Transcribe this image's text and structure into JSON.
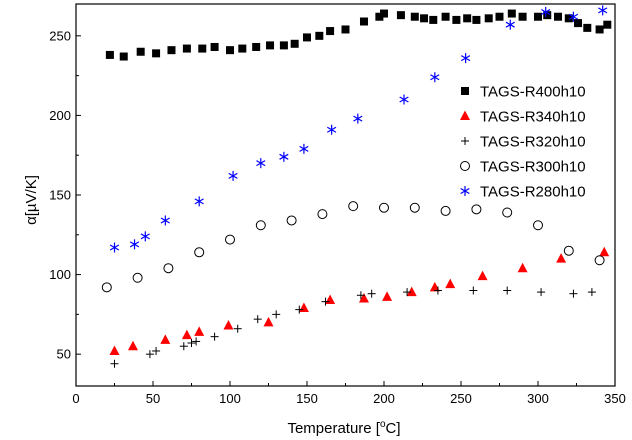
{
  "chart_data": {
    "type": "scatter",
    "title": "",
    "xlabel": "Temperature [°C]",
    "xlabel_parts": {
      "main": "Temperature [",
      "sup": "o",
      "tail": "C]"
    },
    "ylabel": "α[µV/K]",
    "xlim": [
      0,
      350
    ],
    "ylim": [
      30,
      270
    ],
    "xticks": [
      0,
      50,
      100,
      150,
      200,
      250,
      300,
      350
    ],
    "yticks": [
      50,
      100,
      150,
      200,
      250
    ],
    "grid": false,
    "legend_position": "right",
    "series": [
      {
        "name": "TAGS-R400h10",
        "marker": "filled-square",
        "color": "#000000",
        "points": [
          [
            22,
            238
          ],
          [
            31,
            237
          ],
          [
            42,
            240
          ],
          [
            52,
            239
          ],
          [
            62,
            241
          ],
          [
            72,
            242
          ],
          [
            82,
            242
          ],
          [
            90,
            243
          ],
          [
            100,
            241
          ],
          [
            108,
            242
          ],
          [
            117,
            243
          ],
          [
            126,
            244
          ],
          [
            135,
            244
          ],
          [
            142,
            245
          ],
          [
            150,
            249
          ],
          [
            158,
            250
          ],
          [
            165,
            253
          ],
          [
            175,
            254
          ],
          [
            187,
            259
          ],
          [
            197,
            262
          ],
          [
            200,
            264
          ],
          [
            211,
            263
          ],
          [
            220,
            262
          ],
          [
            226,
            261
          ],
          [
            232,
            260
          ],
          [
            240,
            262
          ],
          [
            247,
            260
          ],
          [
            254,
            261
          ],
          [
            260,
            260
          ],
          [
            268,
            261
          ],
          [
            275,
            262
          ],
          [
            283,
            264
          ],
          [
            290,
            262
          ],
          [
            300,
            262
          ],
          [
            306,
            263
          ],
          [
            313,
            262
          ],
          [
            320,
            261
          ],
          [
            326,
            258
          ],
          [
            332,
            255
          ],
          [
            340,
            254
          ],
          [
            345,
            257
          ]
        ]
      },
      {
        "name": "TAGS-R340h10",
        "marker": "filled-triangle",
        "color": "#ff0000",
        "points": [
          [
            25,
            52
          ],
          [
            37,
            55
          ],
          [
            58,
            59
          ],
          [
            72,
            62
          ],
          [
            80,
            64
          ],
          [
            99,
            68
          ],
          [
            125,
            70
          ],
          [
            148,
            79
          ],
          [
            165,
            84
          ],
          [
            187,
            85
          ],
          [
            202,
            86
          ],
          [
            218,
            89
          ],
          [
            233,
            92
          ],
          [
            243,
            94
          ],
          [
            264,
            99
          ],
          [
            290,
            104
          ],
          [
            315,
            110
          ],
          [
            343,
            114
          ]
        ]
      },
      {
        "name": "TAGS-R320h10",
        "marker": "plus",
        "color": "#000000",
        "points": [
          [
            25,
            44
          ],
          [
            48,
            50
          ],
          [
            52,
            52
          ],
          [
            70,
            55
          ],
          [
            75,
            57
          ],
          [
            78,
            58
          ],
          [
            90,
            61
          ],
          [
            105,
            66
          ],
          [
            118,
            72
          ],
          [
            130,
            75
          ],
          [
            145,
            78
          ],
          [
            162,
            83
          ],
          [
            185,
            87
          ],
          [
            192,
            88
          ],
          [
            215,
            89
          ],
          [
            235,
            90
          ],
          [
            258,
            90
          ],
          [
            280,
            90
          ],
          [
            302,
            89
          ],
          [
            323,
            88
          ],
          [
            335,
            89
          ]
        ]
      },
      {
        "name": "TAGS-R300h10",
        "marker": "open-circle",
        "color": "#000000",
        "points": [
          [
            20,
            92
          ],
          [
            40,
            98
          ],
          [
            60,
            104
          ],
          [
            80,
            114
          ],
          [
            100,
            122
          ],
          [
            120,
            131
          ],
          [
            140,
            134
          ],
          [
            160,
            138
          ],
          [
            180,
            143
          ],
          [
            200,
            142
          ],
          [
            220,
            142
          ],
          [
            240,
            140
          ],
          [
            260,
            141
          ],
          [
            280,
            139
          ],
          [
            300,
            131
          ],
          [
            320,
            115
          ],
          [
            340,
            109
          ]
        ]
      },
      {
        "name": "TAGS-R280h10",
        "marker": "asterisk",
        "color": "#0000ff",
        "points": [
          [
            25,
            117
          ],
          [
            38,
            119
          ],
          [
            45,
            124
          ],
          [
            58,
            134
          ],
          [
            80,
            146
          ],
          [
            102,
            162
          ],
          [
            120,
            170
          ],
          [
            135,
            174
          ],
          [
            148,
            179
          ],
          [
            166,
            191
          ],
          [
            183,
            198
          ],
          [
            213,
            210
          ],
          [
            233,
            224
          ],
          [
            253,
            236
          ],
          [
            282,
            257
          ],
          [
            305,
            265
          ],
          [
            323,
            262
          ],
          [
            342,
            266
          ]
        ]
      }
    ]
  }
}
